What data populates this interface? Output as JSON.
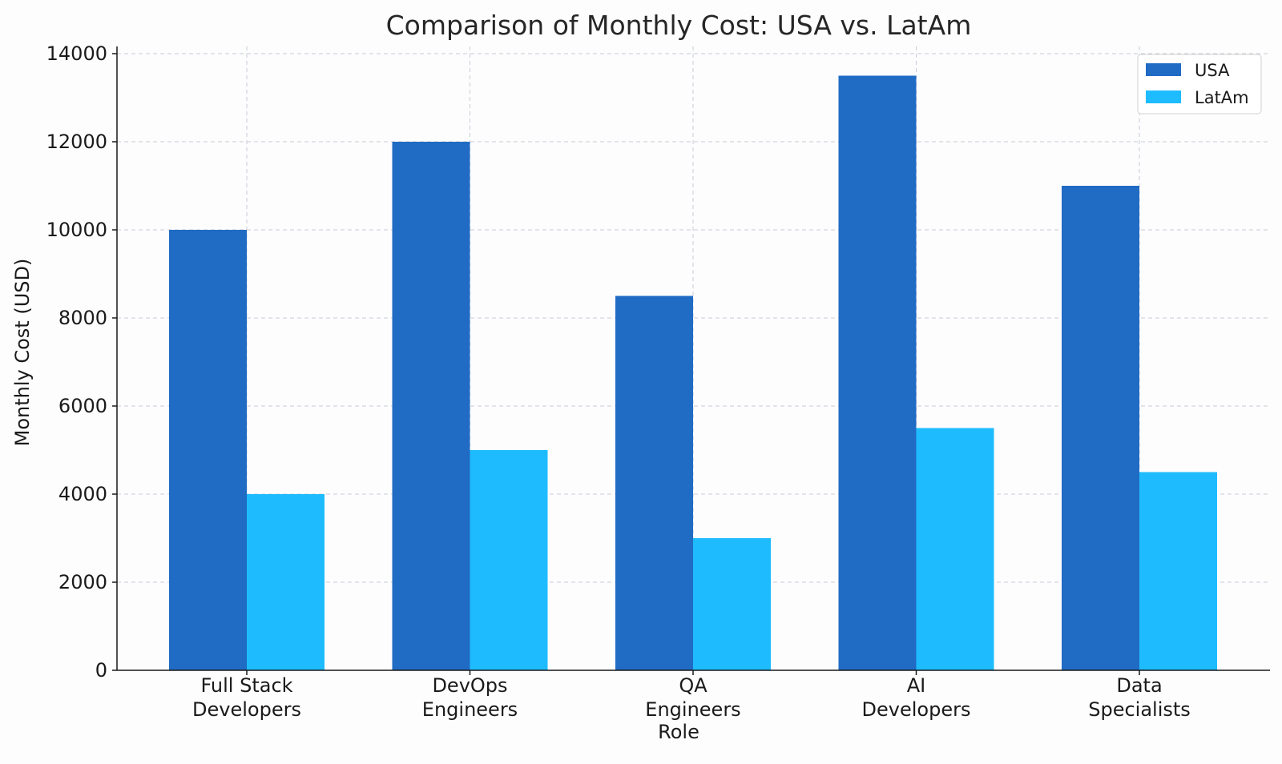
{
  "chart_data": {
    "type": "bar",
    "title": "Comparison of Monthly Cost: USA vs. LatAm",
    "xlabel": "Role",
    "ylabel": "Monthly Cost (USD)",
    "ylim": [
      0,
      14000
    ],
    "yticks": [
      0,
      2000,
      4000,
      6000,
      8000,
      10000,
      12000,
      14000
    ],
    "grid": true,
    "legend_position": "top-right",
    "categories": [
      [
        "Full Stack",
        "Developers"
      ],
      [
        "DevOps",
        "Engineers"
      ],
      [
        "QA",
        "Engineers"
      ],
      [
        "AI",
        "Developers"
      ],
      [
        "Data",
        "Specialists"
      ]
    ],
    "series": [
      {
        "name": "USA",
        "color": "#206bc4",
        "values": [
          10000,
          12000,
          8500,
          13500,
          11000
        ]
      },
      {
        "name": "LatAm",
        "color": "#1ebcff",
        "values": [
          4000,
          5000,
          3000,
          5500,
          4500
        ]
      }
    ]
  }
}
